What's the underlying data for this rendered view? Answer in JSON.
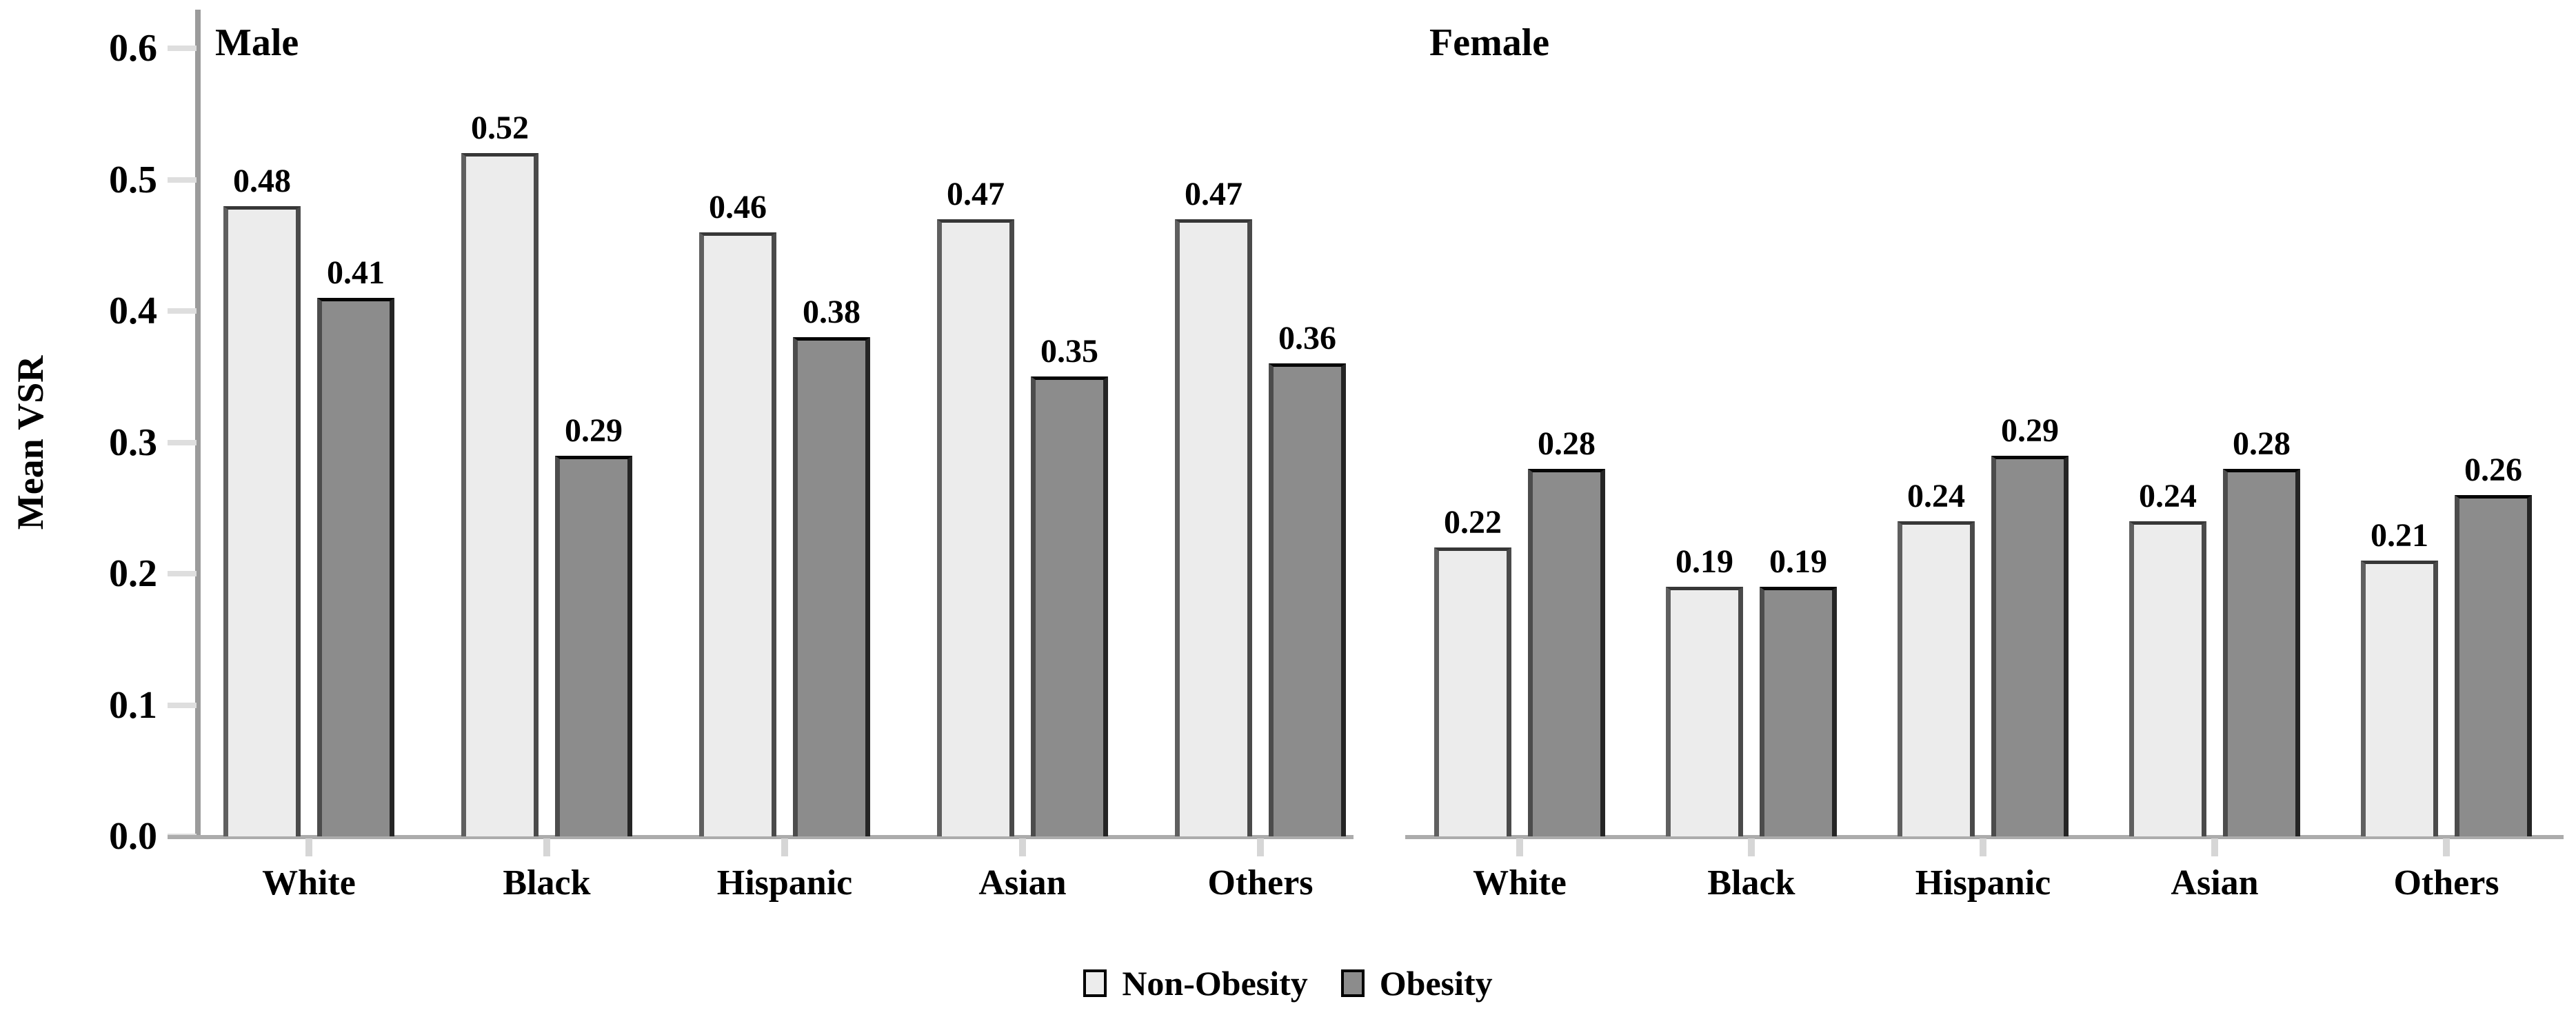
{
  "figure": {
    "y_axis_title": "Mean VSR"
  },
  "chart_data": [
    {
      "type": "bar",
      "title": "Male",
      "categories": [
        "White",
        "Black",
        "Hispanic",
        "Asian",
        "Others"
      ],
      "series": [
        {
          "name": "Non-Obesity",
          "values": [
            0.48,
            0.52,
            0.46,
            0.47,
            0.47
          ]
        },
        {
          "name": "Obesity",
          "values": [
            0.41,
            0.29,
            0.38,
            0.35,
            0.36
          ]
        }
      ],
      "xlabel": "",
      "ylabel": "Mean VSR",
      "ylim": [
        0,
        0.6
      ],
      "yticks": [
        "0.0",
        "0.1",
        "0.2",
        "0.3",
        "0.4",
        "0.5",
        "0.6"
      ],
      "grid": false,
      "value_labels": true,
      "legend_position": "bottom-center"
    },
    {
      "type": "bar",
      "title": "Female",
      "categories": [
        "White",
        "Black",
        "Hispanic",
        "Asian",
        "Others"
      ],
      "series": [
        {
          "name": "Non-Obesity",
          "values": [
            0.22,
            0.19,
            0.24,
            0.24,
            0.21
          ]
        },
        {
          "name": "Obesity",
          "values": [
            0.28,
            0.19,
            0.29,
            0.28,
            0.26
          ]
        }
      ],
      "xlabel": "",
      "ylabel": "",
      "ylim": [
        0,
        0.6
      ],
      "yticks": [],
      "grid": false,
      "value_labels": true,
      "legend_position": "bottom-center"
    }
  ],
  "legend": {
    "items": [
      {
        "label": "Non-Obesity",
        "color": "#ececec"
      },
      {
        "label": "Obesity",
        "color": "#8c8c8c"
      }
    ]
  },
  "colors": {
    "bar_light_fill": "#ececec",
    "bar_dark_fill": "#8c8c8c",
    "axis_line": "#9b9b9b",
    "baseline": "#acacac",
    "tick": "#dedede",
    "text": "#000000",
    "background": "#ffffff"
  }
}
